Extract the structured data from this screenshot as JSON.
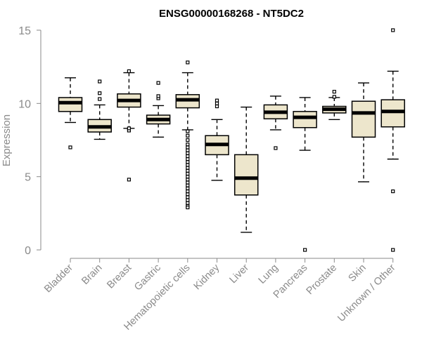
{
  "chart_data": {
    "type": "boxplot",
    "title": "ENSG00000168268 - NT5DC2",
    "ylabel": "Expression",
    "xlabel": "",
    "ylim": [
      0,
      15
    ],
    "yticks": [
      0,
      5,
      10,
      15
    ],
    "grid": false,
    "legend": "none",
    "colors": {
      "box_fill": "#ede6cc",
      "stroke": "#000000",
      "axis_text": "#8a8a8a"
    },
    "categories": [
      "Bladder",
      "Brain",
      "Breast",
      "Gastric",
      "Hematopoietic cells",
      "Kidney",
      "Liver",
      "Lung",
      "Pancreas",
      "Prostate",
      "Skin",
      "Unknown / Other"
    ],
    "boxes": [
      {
        "name": "Bladder",
        "whisker_low": 8.7,
        "q1": 9.45,
        "median": 10.05,
        "q3": 10.4,
        "whisker_high": 11.75,
        "outliers": [
          7.0
        ]
      },
      {
        "name": "Brain",
        "whisker_low": 7.55,
        "q1": 8.05,
        "median": 8.4,
        "q3": 8.9,
        "whisker_high": 9.9,
        "outliers": [
          10.3,
          10.7,
          11.5
        ]
      },
      {
        "name": "Breast",
        "whisker_low": 8.3,
        "q1": 9.75,
        "median": 10.2,
        "q3": 10.65,
        "whisker_high": 12.1,
        "outliers": [
          4.8,
          8.15,
          8.3,
          12.2
        ]
      },
      {
        "name": "Gastric",
        "whisker_low": 7.7,
        "q1": 8.6,
        "median": 8.9,
        "q3": 9.2,
        "whisker_high": 9.85,
        "outliers": [
          10.35,
          10.5,
          11.4
        ]
      },
      {
        "name": "Hematopoietic cells",
        "whisker_low": 8.2,
        "q1": 9.7,
        "median": 10.25,
        "q3": 10.6,
        "whisker_high": 12.1,
        "outliers": [
          12.8,
          8.1,
          7.8,
          7.5,
          7.2,
          7.0,
          6.8,
          6.6,
          6.4,
          6.2,
          6.0,
          5.8,
          5.6,
          5.4,
          5.2,
          5.0,
          4.8,
          4.6,
          4.4,
          4.2,
          4.0,
          3.8,
          3.6,
          3.4,
          3.2,
          3.0,
          2.9
        ]
      },
      {
        "name": "Kidney",
        "whisker_low": 4.75,
        "q1": 6.5,
        "median": 7.2,
        "q3": 7.8,
        "whisker_high": 8.9,
        "outliers": [
          9.8,
          10.0,
          10.2
        ]
      },
      {
        "name": "Liver",
        "whisker_low": 1.2,
        "q1": 3.75,
        "median": 4.9,
        "q3": 6.5,
        "whisker_high": 9.75,
        "outliers": []
      },
      {
        "name": "Lung",
        "whisker_low": 8.2,
        "q1": 8.95,
        "median": 9.4,
        "q3": 9.9,
        "whisker_high": 10.5,
        "outliers": [
          6.95
        ]
      },
      {
        "name": "Pancreas",
        "whisker_low": 6.8,
        "q1": 8.35,
        "median": 9.05,
        "q3": 9.45,
        "whisker_high": 10.4,
        "outliers": [
          0.0
        ]
      },
      {
        "name": "Prostate",
        "whisker_low": 8.9,
        "q1": 9.35,
        "median": 9.6,
        "q3": 9.8,
        "whisker_high": 10.4,
        "outliers": [
          10.8,
          10.45
        ]
      },
      {
        "name": "Skin",
        "whisker_low": 4.65,
        "q1": 7.7,
        "median": 9.35,
        "q3": 10.15,
        "whisker_high": 11.4,
        "outliers": []
      },
      {
        "name": "Unknown / Other",
        "whisker_low": 6.2,
        "q1": 8.4,
        "median": 9.45,
        "q3": 10.25,
        "whisker_high": 12.2,
        "outliers": [
          15.0,
          4.0,
          0.0
        ]
      }
    ]
  }
}
